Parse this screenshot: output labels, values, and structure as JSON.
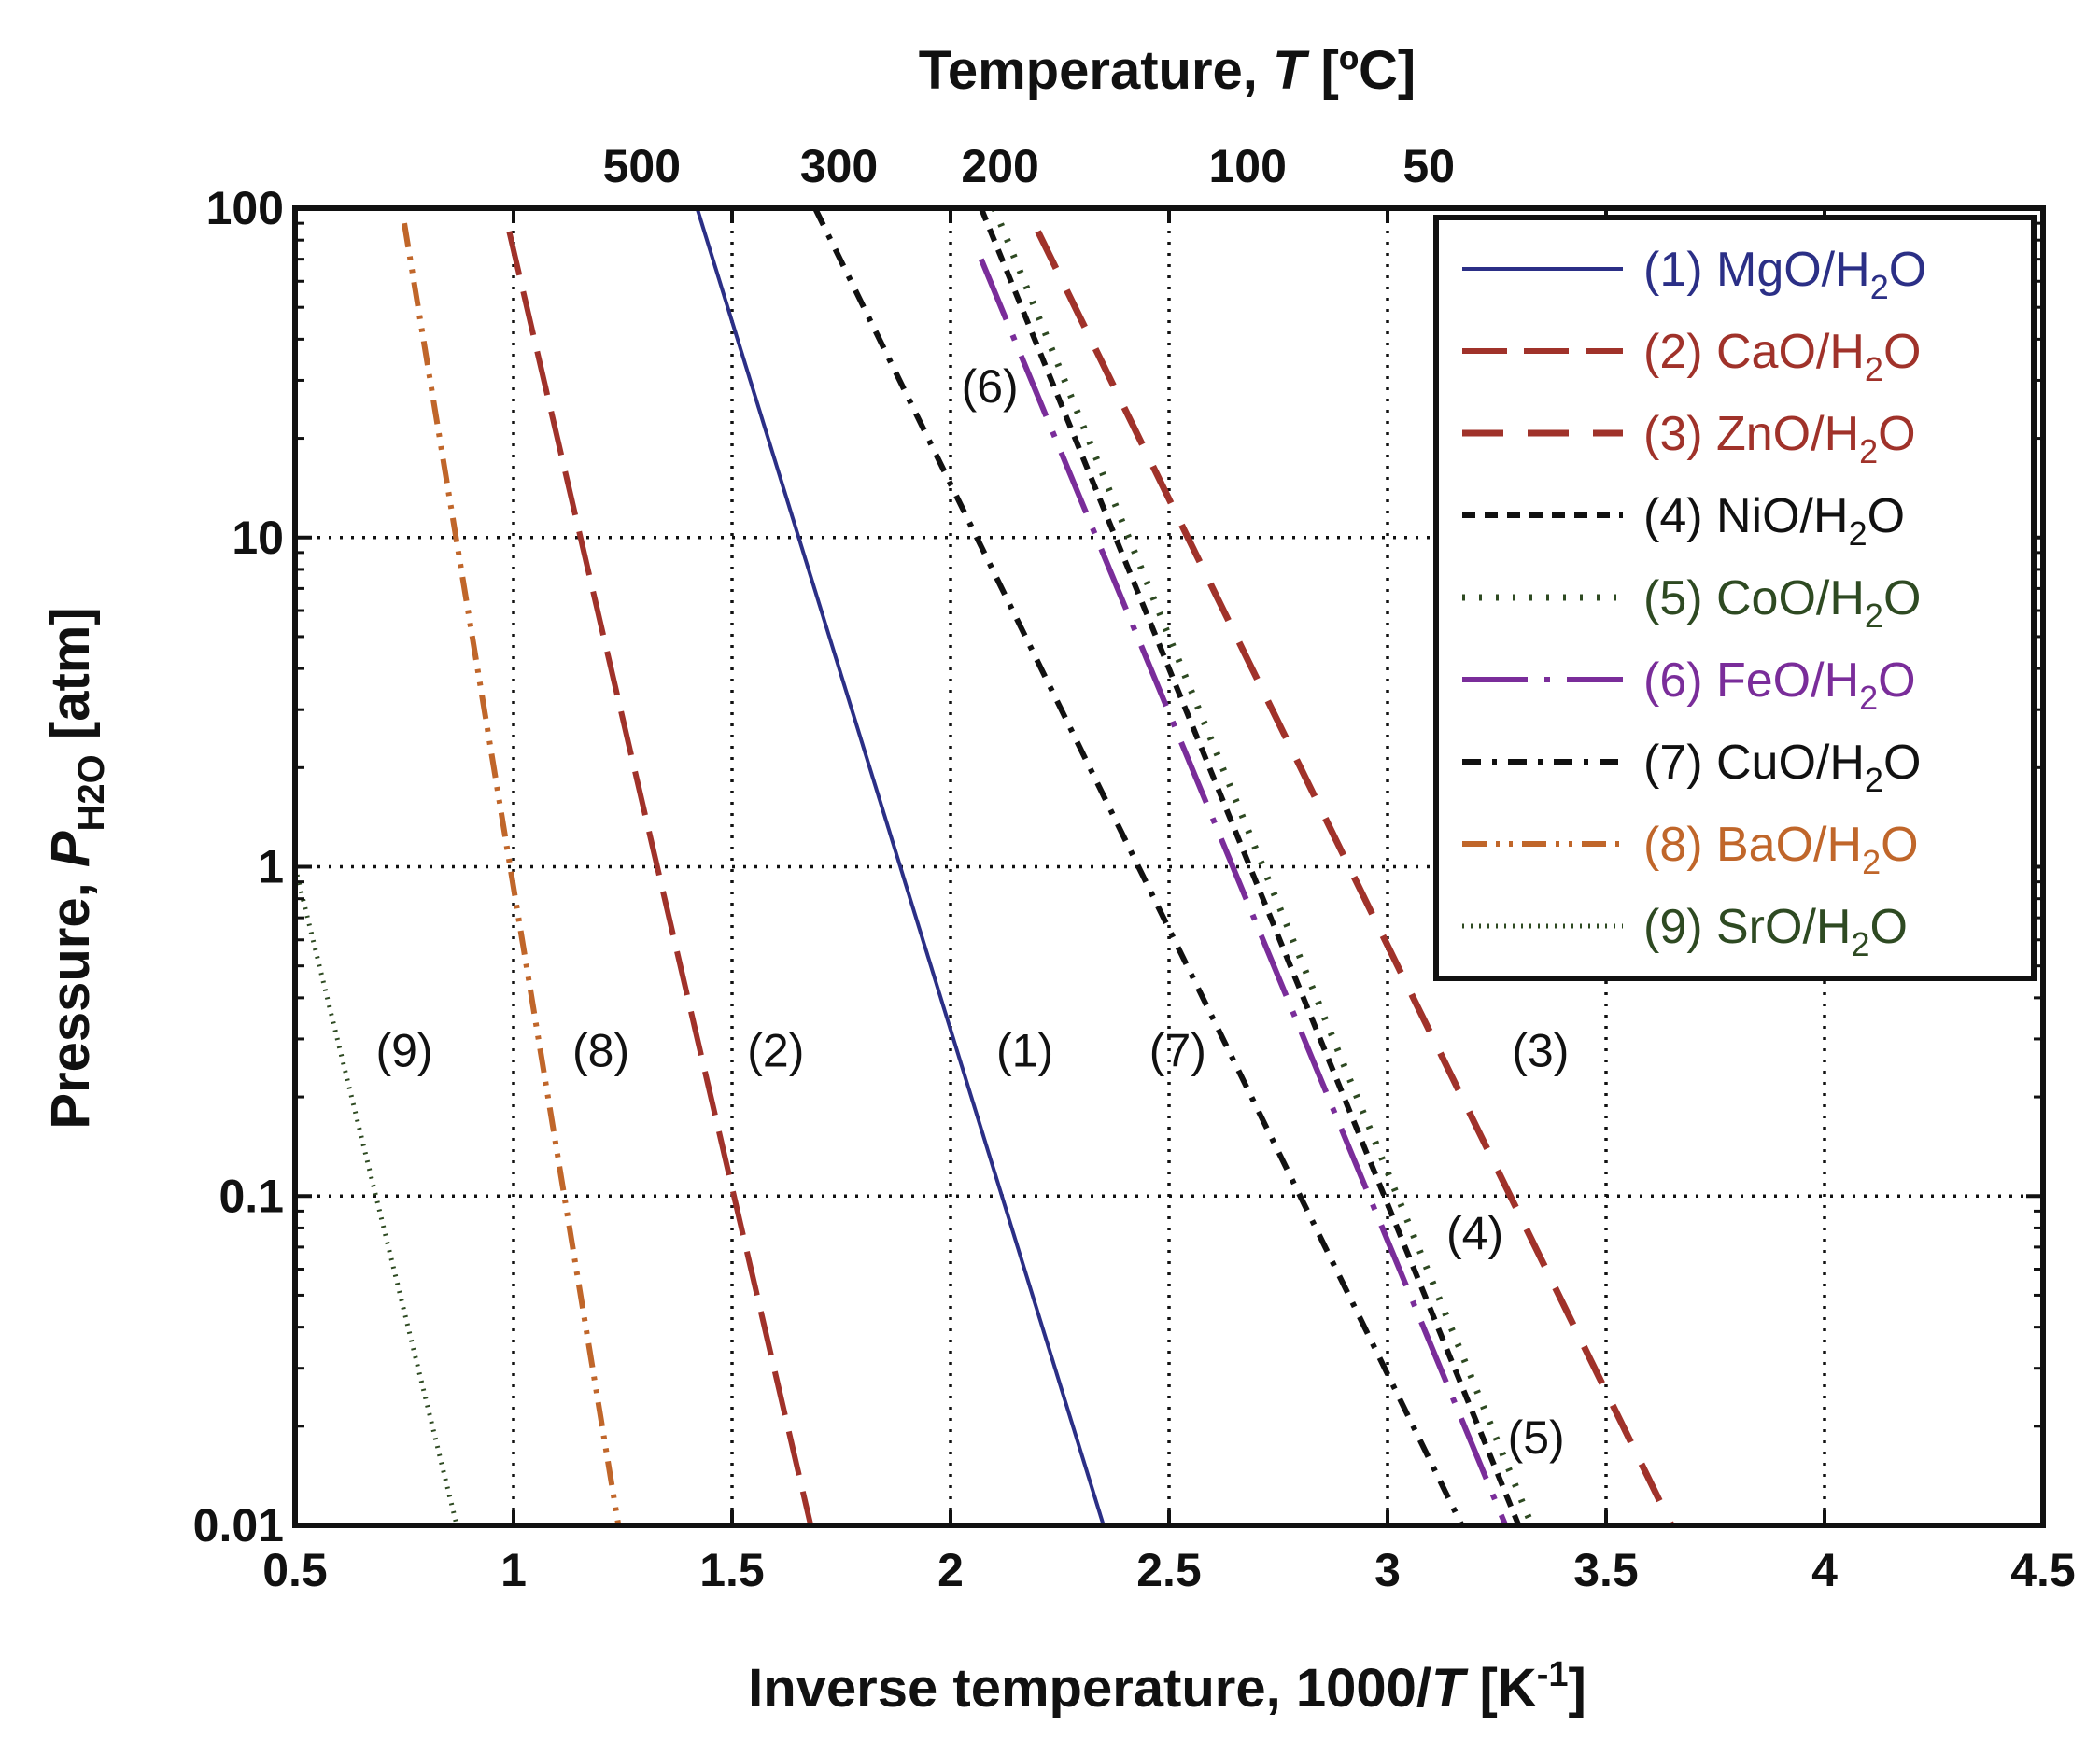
{
  "chart_data": {
    "type": "line",
    "x_scale": "linear",
    "y_scale": "log",
    "title_top_axis": "Temperature, T [ºC]",
    "xlabel": "Inverse temperature, 1000/T [K-1]",
    "ylabel": "Pressure, PH2O [atm]",
    "xlim": [
      0.5,
      4.5
    ],
    "ylim": [
      0.01,
      100
    ],
    "x_ticks": [
      {
        "value": 0.5,
        "label": "0.5"
      },
      {
        "value": 1,
        "label": "1"
      },
      {
        "value": 1.5,
        "label": "1.5"
      },
      {
        "value": 2,
        "label": "2"
      },
      {
        "value": 2.5,
        "label": "2.5"
      },
      {
        "value": 3,
        "label": "3"
      },
      {
        "value": 3.5,
        "label": "3.5"
      },
      {
        "value": 4,
        "label": "4"
      },
      {
        "value": 4.5,
        "label": "4.5"
      }
    ],
    "y_ticks": [
      {
        "value": 0.01,
        "label": "0.01"
      },
      {
        "value": 0.1,
        "label": "0.1"
      },
      {
        "value": 1,
        "label": "1"
      },
      {
        "value": 10,
        "label": "10"
      },
      {
        "value": 100,
        "label": "100"
      }
    ],
    "top_ticks": [
      {
        "celsius": 500,
        "label": "500"
      },
      {
        "celsius": 300,
        "label": "300"
      },
      {
        "celsius": 200,
        "label": "200"
      },
      {
        "celsius": 100,
        "label": "100"
      },
      {
        "celsius": 50,
        "label": "50"
      }
    ],
    "grid": true,
    "legend_position": "top-right",
    "series": [
      {
        "id": 1,
        "label": "(1) MgO/H",
        "formula_tail": "O",
        "sub": "2",
        "tag": "(1)",
        "color": "#2b2f86",
        "dash": "solid",
        "x": [
          1.42,
          2.35
        ],
        "y": [
          100,
          0.01
        ]
      },
      {
        "id": 2,
        "label": "(2) CaO/H",
        "formula_tail": "O",
        "sub": "2",
        "tag": "(2)",
        "color": "#a0322a",
        "dash": "longdash",
        "x": [
          0.99,
          1.68
        ],
        "y": [
          85,
          0.01
        ]
      },
      {
        "id": 3,
        "label": "(3) ZnO/H",
        "formula_tail": "O",
        "sub": "2",
        "tag": "(3)",
        "color": "#a0322a",
        "dash": "bigdash",
        "x": [
          2.2,
          3.65
        ],
        "y": [
          85,
          0.01
        ]
      },
      {
        "id": 4,
        "label": "(4) NiO/H",
        "formula_tail": "O",
        "sub": "2",
        "tag": "(4)",
        "color": "#111111",
        "dash": "shortdash",
        "x": [
          2.07,
          3.3
        ],
        "y": [
          100,
          0.01
        ]
      },
      {
        "id": 5,
        "label": "(5) CoO/H",
        "formula_tail": "O",
        "sub": "2",
        "tag": "(5)",
        "color": "#2e4a22",
        "dash": "dotted",
        "x": [
          2.1,
          3.33
        ],
        "y": [
          100,
          0.01
        ]
      },
      {
        "id": 6,
        "label": "(6) FeO/H",
        "formula_tail": "O",
        "sub": "2",
        "tag": "(6)",
        "color": "#7a2d9a",
        "dash": "dashdot",
        "x": [
          2.07,
          3.27
        ],
        "y": [
          70,
          0.01
        ]
      },
      {
        "id": 7,
        "label": "(7) CuO/H",
        "formula_tail": "O",
        "sub": "2",
        "tag": "(7)",
        "color": "#111111",
        "dash": "dashdot2",
        "x": [
          1.69,
          3.17
        ],
        "y": [
          100,
          0.01
        ]
      },
      {
        "id": 8,
        "label": "(8) BaO/H",
        "formula_tail": "O",
        "sub": "2",
        "tag": "(8)",
        "color": "#c0662a",
        "dash": "dashdotdot",
        "x": [
          0.75,
          1.24
        ],
        "y": [
          90,
          0.01
        ]
      },
      {
        "id": 9,
        "label": "(9) SrO/H",
        "formula_tail": "O",
        "sub": "2",
        "tag": "(9)",
        "color": "#2e4a22",
        "dash": "fine",
        "x": [
          0.5,
          0.87
        ],
        "y": [
          1,
          0.01
        ]
      }
    ],
    "curve_tags": [
      {
        "text": "(9)",
        "x": 0.75,
        "y": 0.27
      },
      {
        "text": "(8)",
        "x": 1.2,
        "y": 0.27
      },
      {
        "text": "(2)",
        "x": 1.6,
        "y": 0.27
      },
      {
        "text": "(1)",
        "x": 2.17,
        "y": 0.27
      },
      {
        "text": "(7)",
        "x": 2.52,
        "y": 0.27
      },
      {
        "text": "(3)",
        "x": 3.35,
        "y": 0.27
      },
      {
        "text": "(6)",
        "x": 2.09,
        "y": 28
      },
      {
        "text": "(4)",
        "x": 3.2,
        "y": 0.075
      },
      {
        "text": "(5)",
        "x": 3.34,
        "y": 0.018
      }
    ]
  }
}
